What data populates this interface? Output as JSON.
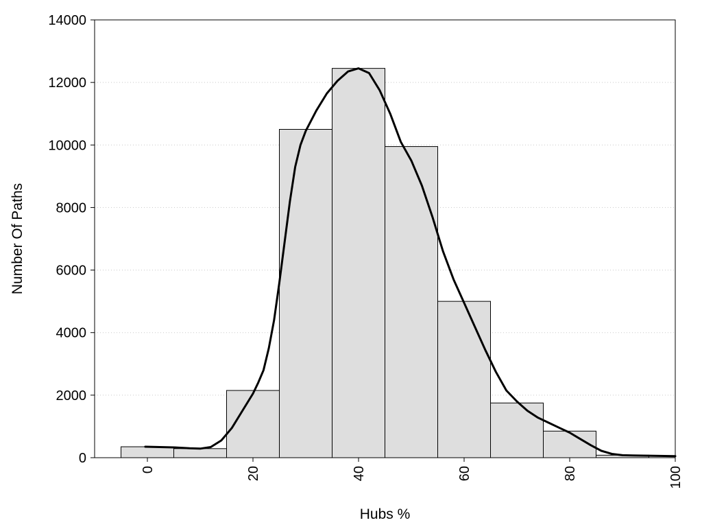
{
  "chart_data": {
    "type": "bar",
    "xlabel": "Hubs %",
    "ylabel": "Number Of Paths",
    "xlim": [
      -10,
      100
    ],
    "ylim": [
      0,
      14000
    ],
    "x_ticks": [
      0,
      20,
      40,
      60,
      80,
      100
    ],
    "y_ticks": [
      0,
      2000,
      4000,
      6000,
      8000,
      10000,
      12000,
      14000
    ],
    "grid": "horizontal-dotted",
    "bin_width": 10,
    "bins": [
      {
        "center": 0,
        "value": 350
      },
      {
        "center": 10,
        "value": 290
      },
      {
        "center": 20,
        "value": 2150
      },
      {
        "center": 30,
        "value": 10500
      },
      {
        "center": 40,
        "value": 12450
      },
      {
        "center": 50,
        "value": 9950
      },
      {
        "center": 60,
        "value": 5000
      },
      {
        "center": 70,
        "value": 1750
      },
      {
        "center": 80,
        "value": 850
      },
      {
        "center": 90,
        "value": 80
      }
    ],
    "density_curve": {
      "x": [
        -0.4,
        5,
        8,
        10,
        12,
        14,
        16,
        18,
        20,
        21,
        22,
        23,
        24,
        25,
        26,
        27,
        28,
        29,
        30,
        32,
        34,
        36,
        38,
        40,
        42,
        44,
        46,
        48,
        50,
        52,
        54,
        56,
        58,
        60,
        62,
        64,
        66,
        68,
        70,
        72,
        74,
        76,
        78,
        80,
        82,
        84,
        86,
        88,
        90,
        92,
        96,
        100
      ],
      "y": [
        350,
        330,
        300,
        290,
        340,
        550,
        950,
        1500,
        2050,
        2400,
        2800,
        3500,
        4400,
        5600,
        6900,
        8200,
        9300,
        10000,
        10450,
        11100,
        11650,
        12050,
        12350,
        12450,
        12300,
        11750,
        11000,
        10100,
        9500,
        8700,
        7700,
        6600,
        5700,
        4950,
        4200,
        3450,
        2750,
        2150,
        1800,
        1500,
        1280,
        1120,
        960,
        800,
        600,
        400,
        220,
        120,
        80,
        70,
        60,
        50
      ]
    }
  }
}
